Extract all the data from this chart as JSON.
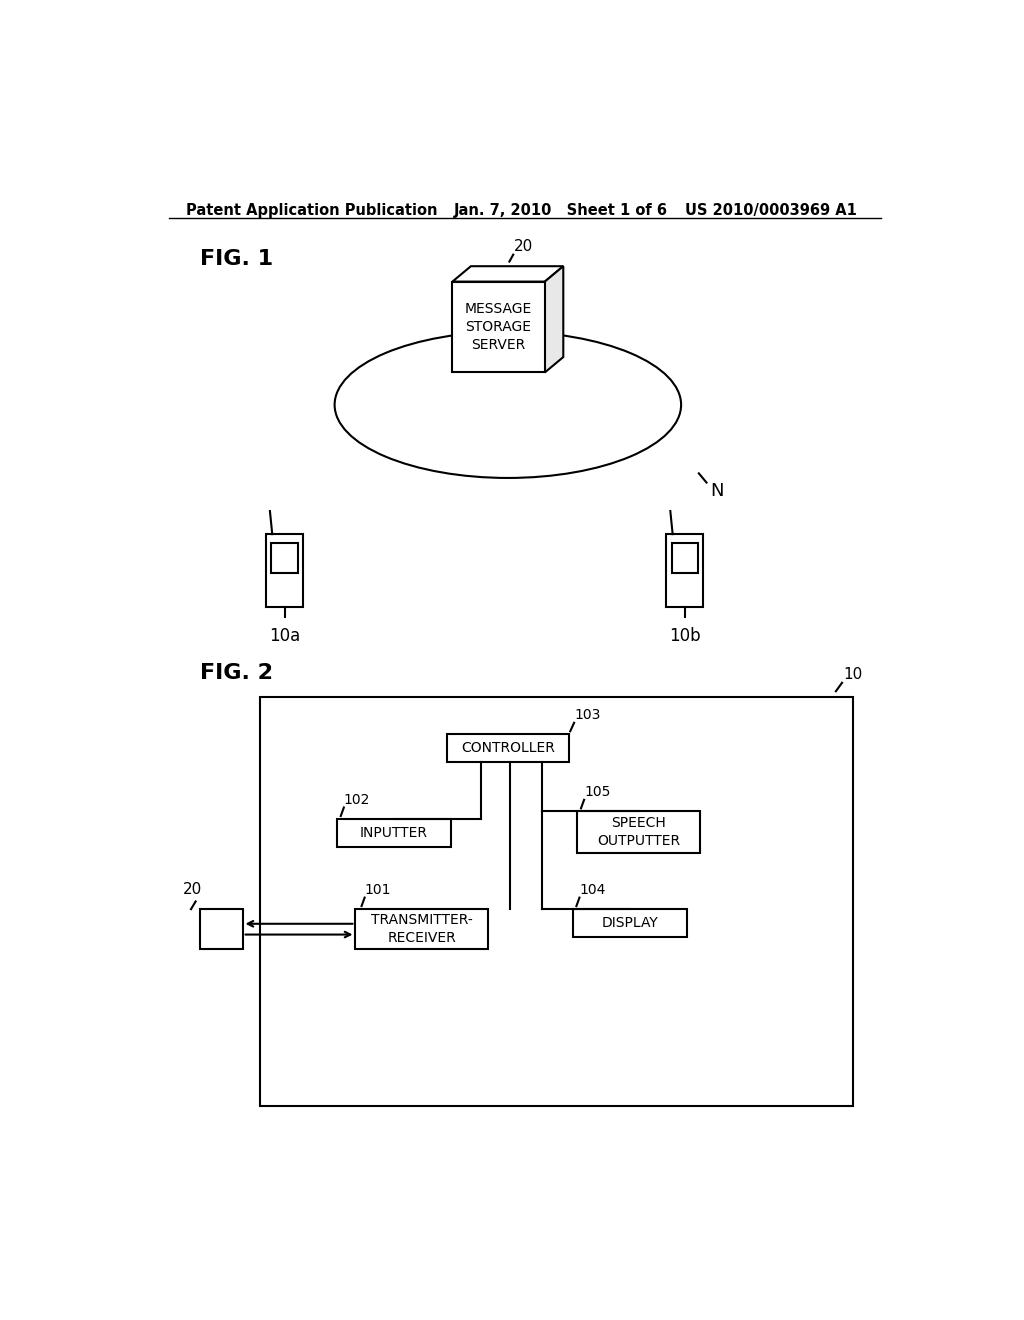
{
  "background_color": "#ffffff",
  "header_left": "Patent Application Publication",
  "header_center": "Jan. 7, 2010   Sheet 1 of 6",
  "header_right": "US 2010/0003969 A1",
  "fig1_label": "FIG. 1",
  "fig2_label": "FIG. 2",
  "server_label": "MESSAGE\nSTORAGE\nSERVER",
  "server_ref": "20",
  "network_label": "N",
  "phone_left_ref": "10a",
  "phone_right_ref": "10b",
  "device_ref": "10",
  "controller_label": "CONTROLLER",
  "controller_ref": "103",
  "inputter_label": "INPUTTER",
  "inputter_ref": "102",
  "speech_label": "SPEECH\nOUTPUTTER",
  "speech_ref": "105",
  "transmitter_label": "TRANSMITTER-\nRECEIVER",
  "transmitter_ref": "101",
  "display_label": "DISPLAY",
  "display_ref": "104",
  "server20_ref": "20"
}
